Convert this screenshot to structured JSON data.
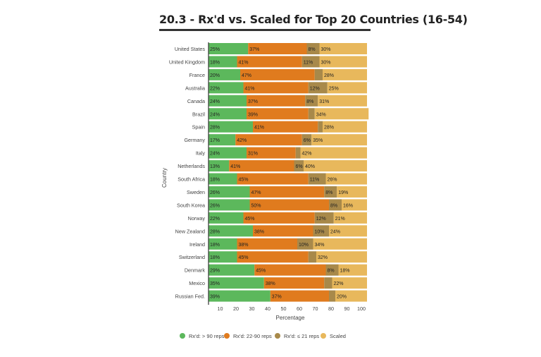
{
  "chart_data": {
    "type": "bar",
    "orientation": "horizontal",
    "stacked": true,
    "title": "20.3 - Rx'd vs. Scaled for Top 20 Countries (16-54)",
    "xlabel": "Percentage",
    "ylabel": "Country",
    "xlim": [
      0,
      100
    ],
    "xticks": [
      "10",
      "20",
      "30",
      "40",
      "50",
      "60",
      "70",
      "80",
      "90",
      "100"
    ],
    "categories": [
      "United States",
      "United Kingdom",
      "France",
      "Australia",
      "Canada",
      "Brazil",
      "Spain",
      "Germany",
      "Italy",
      "Netherlands",
      "South Africa",
      "Sweden",
      "South Korea",
      "Norway",
      "New Zealand",
      "Ireland",
      "Switzerland",
      "Denmark",
      "Mexico",
      "Russian Fed."
    ],
    "series": [
      {
        "name": "Rx'd: > 90 reps",
        "color": "#5cb85c",
        "values": [
          25,
          18,
          20,
          22,
          24,
          24,
          28,
          17,
          24,
          13,
          18,
          26,
          26,
          22,
          28,
          18,
          18,
          29,
          35,
          39
        ]
      },
      {
        "name": "Rx'd: 22-90 reps",
        "color": "#e07b1e",
        "values": [
          37,
          41,
          47,
          41,
          37,
          39,
          41,
          42,
          31,
          41,
          45,
          47,
          50,
          45,
          38,
          38,
          45,
          45,
          38,
          37
        ]
      },
      {
        "name": "Rx'd: ≤ 21 reps",
        "color": "#a8894a",
        "values": [
          8,
          11,
          5,
          12,
          8,
          4,
          3,
          6,
          3,
          6,
          11,
          8,
          8,
          12,
          10,
          10,
          5,
          8,
          5,
          4
        ]
      },
      {
        "name": "Scaled",
        "color": "#e8b85c",
        "values": [
          30,
          30,
          28,
          25,
          31,
          34,
          28,
          35,
          42,
          40,
          26,
          19,
          16,
          21,
          24,
          34,
          32,
          18,
          22,
          20
        ]
      }
    ],
    "data_labels": [
      [
        "25%",
        "37%",
        "8%",
        "30%"
      ],
      [
        "18%",
        "41%",
        "11%",
        "30%"
      ],
      [
        "20%",
        "47%",
        "",
        "28%"
      ],
      [
        "22%",
        "41%",
        "12%",
        "25%"
      ],
      [
        "24%",
        "37%",
        "8%",
        "31%"
      ],
      [
        "24%",
        "39%",
        "",
        "34%"
      ],
      [
        "28%",
        "41%",
        "",
        "28%"
      ],
      [
        "17%",
        "42%",
        "6%",
        "35%"
      ],
      [
        "24%",
        "31%",
        "",
        "42%"
      ],
      [
        "13%",
        "41%",
        "6%",
        "40%"
      ],
      [
        "18%",
        "45%",
        "11%",
        "26%"
      ],
      [
        "26%",
        "47%",
        "8%",
        "19%"
      ],
      [
        "26%",
        "50%",
        "8%",
        "16%"
      ],
      [
        "22%",
        "45%",
        "12%",
        "21%"
      ],
      [
        "28%",
        "38%",
        "10%",
        "24%"
      ],
      [
        "18%",
        "38%",
        "10%",
        "34%"
      ],
      [
        "18%",
        "45%",
        "",
        "32%"
      ],
      [
        "29%",
        "45%",
        "8%",
        "18%"
      ],
      [
        "35%",
        "38%",
        "",
        "22%"
      ],
      [
        "39%",
        "37%",
        "",
        "20%"
      ]
    ],
    "legend": {
      "position": "bottom"
    },
    "grid": false
  }
}
